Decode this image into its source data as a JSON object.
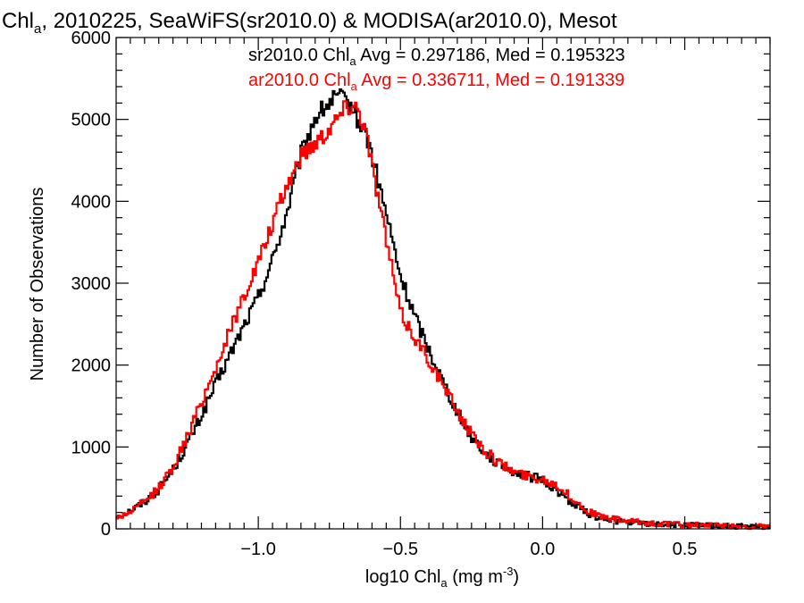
{
  "chart_data": {
    "type": "histogram-step",
    "title": {
      "pre": "Chl",
      "sub": "a",
      "post": ", 2010225, SeaWiFS(sr2010.0) & MODISA(ar2010.0), Mesot"
    },
    "xlabel": {
      "pre": "log10 Chl",
      "sub": "a",
      "mid": " (mg m",
      "sup": "-3",
      "post": ")"
    },
    "ylabel": "Number of Observations",
    "xlim": [
      -1.5,
      0.8
    ],
    "ylim": [
      0,
      6000
    ],
    "x_ticks": [
      -1.0,
      -0.5,
      0.0,
      0.5
    ],
    "x_tick_labels": [
      "−1.0",
      "−0.5",
      "0.0",
      "0.5"
    ],
    "y_ticks": [
      0,
      1000,
      2000,
      3000,
      4000,
      5000,
      6000
    ],
    "y_tick_labels": [
      "0",
      "1000",
      "2000",
      "3000",
      "4000",
      "5000",
      "6000"
    ],
    "grid": false,
    "legend_placement": "top-right",
    "series": [
      {
        "name": "sr2010.0",
        "color": "#000000",
        "legend": {
          "pre": "sr2010.0 Chl",
          "sub": "a",
          "post": " Avg = 0.297186, Med = 0.195323"
        },
        "x": [
          -1.5,
          -1.45,
          -1.4,
          -1.35,
          -1.3,
          -1.25,
          -1.2,
          -1.15,
          -1.1,
          -1.05,
          -1.0,
          -0.95,
          -0.9,
          -0.85,
          -0.8,
          -0.75,
          -0.72,
          -0.7,
          -0.67,
          -0.65,
          -0.62,
          -0.6,
          -0.55,
          -0.5,
          -0.45,
          -0.4,
          -0.35,
          -0.3,
          -0.25,
          -0.2,
          -0.15,
          -0.1,
          -0.05,
          0.0,
          0.05,
          0.1,
          0.15,
          0.2,
          0.3,
          0.4,
          0.5,
          0.6,
          0.7,
          0.8
        ],
        "y": [
          150,
          220,
          330,
          480,
          720,
          1030,
          1380,
          1760,
          2120,
          2480,
          2830,
          3280,
          3850,
          4560,
          5020,
          5200,
          5280,
          5230,
          5150,
          5000,
          4820,
          4550,
          3850,
          3080,
          2600,
          2190,
          1800,
          1430,
          1130,
          920,
          780,
          700,
          640,
          600,
          470,
          330,
          210,
          130,
          80,
          60,
          45,
          35,
          25,
          20
        ]
      },
      {
        "name": "ar2010.0",
        "color": "#ff0000",
        "legend": {
          "pre": "ar2010.0 Chl",
          "sub": "a",
          "post": " Avg = 0.336711, Med = 0.191339"
        },
        "x": [
          -1.5,
          -1.45,
          -1.4,
          -1.35,
          -1.3,
          -1.25,
          -1.2,
          -1.15,
          -1.1,
          -1.05,
          -1.0,
          -0.95,
          -0.9,
          -0.85,
          -0.8,
          -0.77,
          -0.75,
          -0.72,
          -0.7,
          -0.67,
          -0.65,
          -0.62,
          -0.6,
          -0.55,
          -0.5,
          -0.45,
          -0.4,
          -0.35,
          -0.3,
          -0.25,
          -0.2,
          -0.15,
          -0.1,
          -0.05,
          0.0,
          0.05,
          0.1,
          0.15,
          0.2,
          0.3,
          0.4,
          0.5,
          0.6,
          0.7,
          0.8
        ],
        "y": [
          130,
          210,
          330,
          500,
          760,
          1120,
          1550,
          1960,
          2420,
          2850,
          3250,
          3720,
          4180,
          4560,
          4720,
          4820,
          4900,
          5030,
          5130,
          5190,
          5150,
          4850,
          4450,
          3540,
          2640,
          2340,
          2070,
          1750,
          1440,
          1160,
          940,
          800,
          700,
          640,
          610,
          540,
          380,
          240,
          150,
          90,
          65,
          50,
          40,
          30,
          25
        ]
      }
    ]
  }
}
